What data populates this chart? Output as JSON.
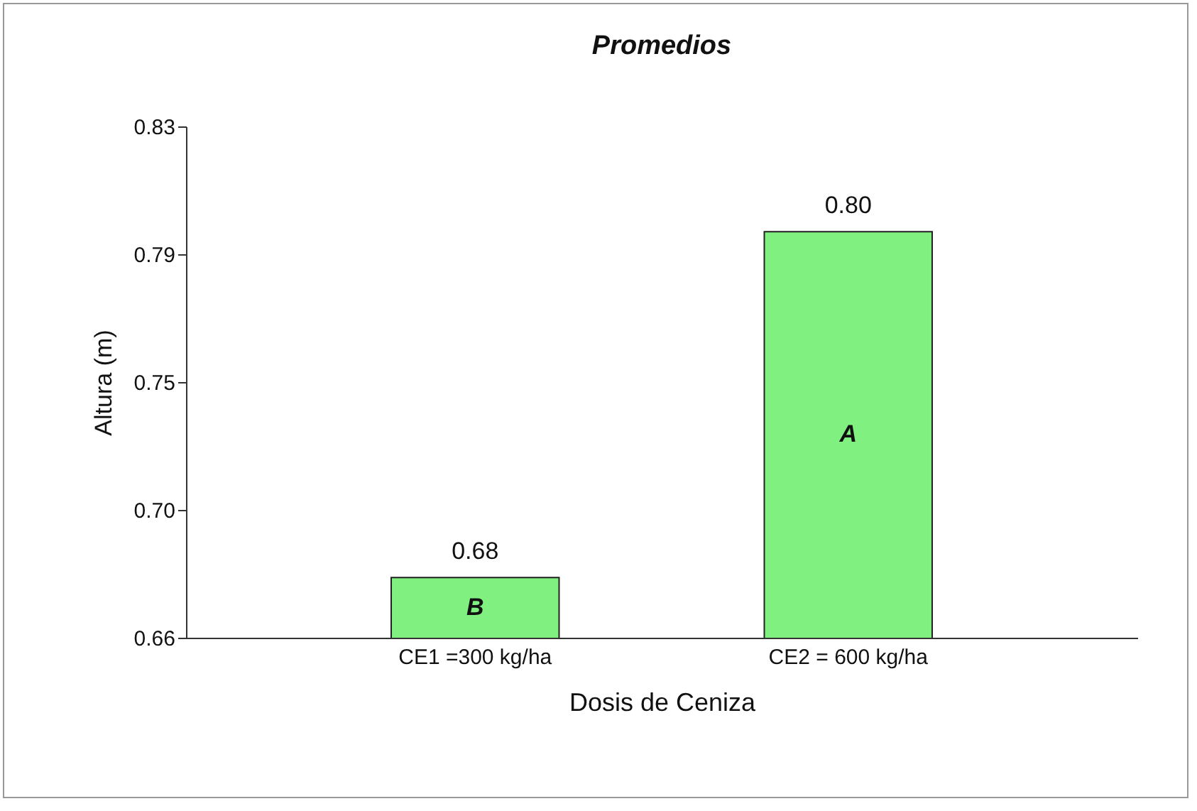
{
  "chart_data": {
    "type": "bar",
    "title": "Promedios",
    "xlabel": "Dosis de Ceniza",
    "ylabel": "Altura (m)",
    "categories": [
      "CE1 =300 kg/ha",
      "CE2 = 600 kg/ha"
    ],
    "values": [
      0.68,
      0.795
    ],
    "value_labels": [
      "0.68",
      "0.80"
    ],
    "color": "#80f080",
    "ylim": [
      0.66,
      0.83
    ],
    "yticks": [
      0.66,
      {
        "value": 0.7025,
        "label": "0.70"
      },
      {
        "value": 0.745,
        "label": "0.75"
      },
      {
        "value": 0.7875,
        "label": "0.79"
      },
      0.83
    ],
    "annotations": [
      "B",
      "A"
    ],
    "grid": false
  }
}
